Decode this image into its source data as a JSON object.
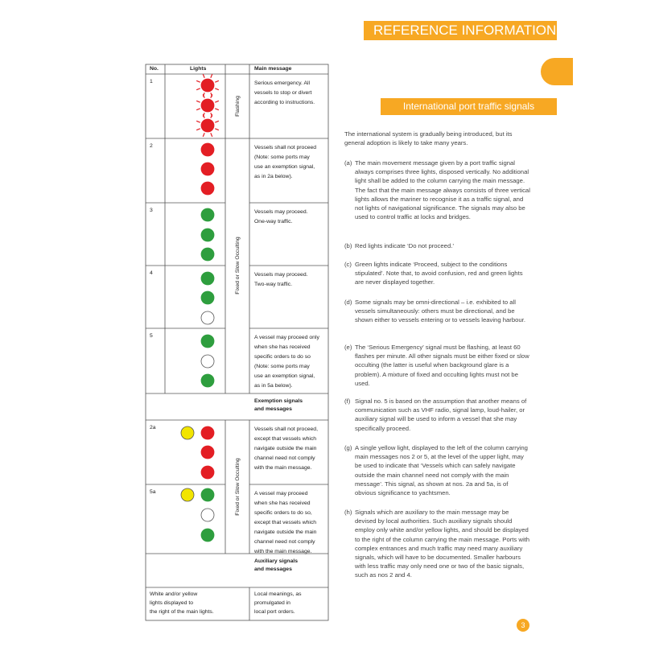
{
  "header": {
    "title": "REFERENCE INFORMATION",
    "subtitle": "International port traffic signals",
    "page_number": "3"
  },
  "table": {
    "columns": [
      "No.",
      "Lights",
      "Main message"
    ],
    "rows": [
      {
        "no": "1",
        "side": "Flashing",
        "message": [
          "Serious emergency. All",
          "vessels to stop or divert",
          "according to instructions."
        ]
      },
      {
        "no": "2",
        "message": [
          "Vessels shall not proceed",
          "(Note: some ports may",
          "use an exemption signal,",
          "as in 2a below)."
        ]
      },
      {
        "no": "3",
        "message": [
          "Vessels may proceed.",
          "One-way traffic."
        ]
      },
      {
        "no": "4",
        "message": [
          "Vessels may proceed.",
          "Two-way traffic."
        ]
      },
      {
        "no": "5",
        "message": [
          "A vessel may proceed only",
          "when she has received",
          "specific orders to do so",
          "(Note: some ports may",
          "use an exemption signal,",
          "as in 5a below)."
        ]
      },
      {
        "no": "2a",
        "message": [
          "Vessels shall not proceed,",
          "except that vessels which",
          "navigate outside the main",
          "channel need not comply",
          "with the main message."
        ]
      },
      {
        "no": "5a",
        "message": [
          "A vessel may proceed",
          "when she has received",
          "specific orders to do so,",
          "except that vessels which",
          "navigate outside the main",
          "channel need not comply",
          "with the main message."
        ]
      }
    ],
    "side_labels": [
      "Fixed or Slow Occulting",
      "Fixed or Slow Occulting"
    ],
    "sections": [
      [
        "Exemption signals",
        "and messages"
      ],
      [
        "Auxiliary signals",
        "and messages"
      ]
    ],
    "footer": {
      "lights": [
        "White and/or yellow",
        "lights displayed to",
        "the right of the main lights."
      ],
      "message": [
        "Local meanings, as",
        "promulgated in",
        "local port orders."
      ]
    }
  },
  "body": {
    "intro": "The international system is gradually being introduced, but its general adoption is likely to take many years.",
    "items": [
      {
        "label": "(a)",
        "text": "The main movement message given by a port traffic signal always comprises three lights, disposed vertically. No additional light shall be added to the column carrying the main message. The fact that the main message always consists of three vertical lights allows the mariner to recognise it as a traffic signal, and not lights of navigational significance. The signals may also be used to control traffic at locks and bridges."
      },
      {
        "label": "(b)",
        "text": "Red lights indicate ‘Do not proceed.’"
      },
      {
        "label": "(c)",
        "text": "Green lights indicate ‘Proceed, subject to the conditions stipulated’. Note that, to avoid confusion, red and green lights are never displayed together."
      },
      {
        "label": "(d)",
        "text": "Some signals may be omni-directional – i.e. exhibited to all vessels simultaneously: others must be directional, and be shown either to vessels entering or to vessels leaving harbour."
      },
      {
        "label": "(e)",
        "text": "The ‘Serious Emergency’ signal must be flashing, at least 60 flashes per minute. All other signals must be either fixed or slow occulting (the latter is useful when background glare is a problem). A mixture of fixed and occulting lights must not be used."
      },
      {
        "label": "(f)",
        "text": "Signal no. 5 is based on the assumption that another means of communication such as VHF radio, signal lamp, loud-hailer, or auxiliary signal will be used to inform a vessel that she may specifically proceed."
      },
      {
        "label": "(g)",
        "text": "A single yellow light, displayed to the left of the column carrying main messages nos 2 or 5, at the level of the upper light, may be used to indicate that ‘Vessels which can safely navigate outside the main channel need not comply with the main message’. This signal, as shown at nos. 2a and 5a, is of obvious significance to yachtsmen."
      },
      {
        "label": "(h)",
        "text": "Signals which are auxiliary to the main message may be devised by local authorities. Such auxiliary signals should employ only white and/or yellow lights, and should be displayed to the right of the column carrying the main message. Ports with complex entrances and much traffic may need many auxiliary signals, which will have to be documented. Smaller harbours with less traffic may only need one or two of the basic signals, such as nos 2 and 4."
      }
    ]
  }
}
